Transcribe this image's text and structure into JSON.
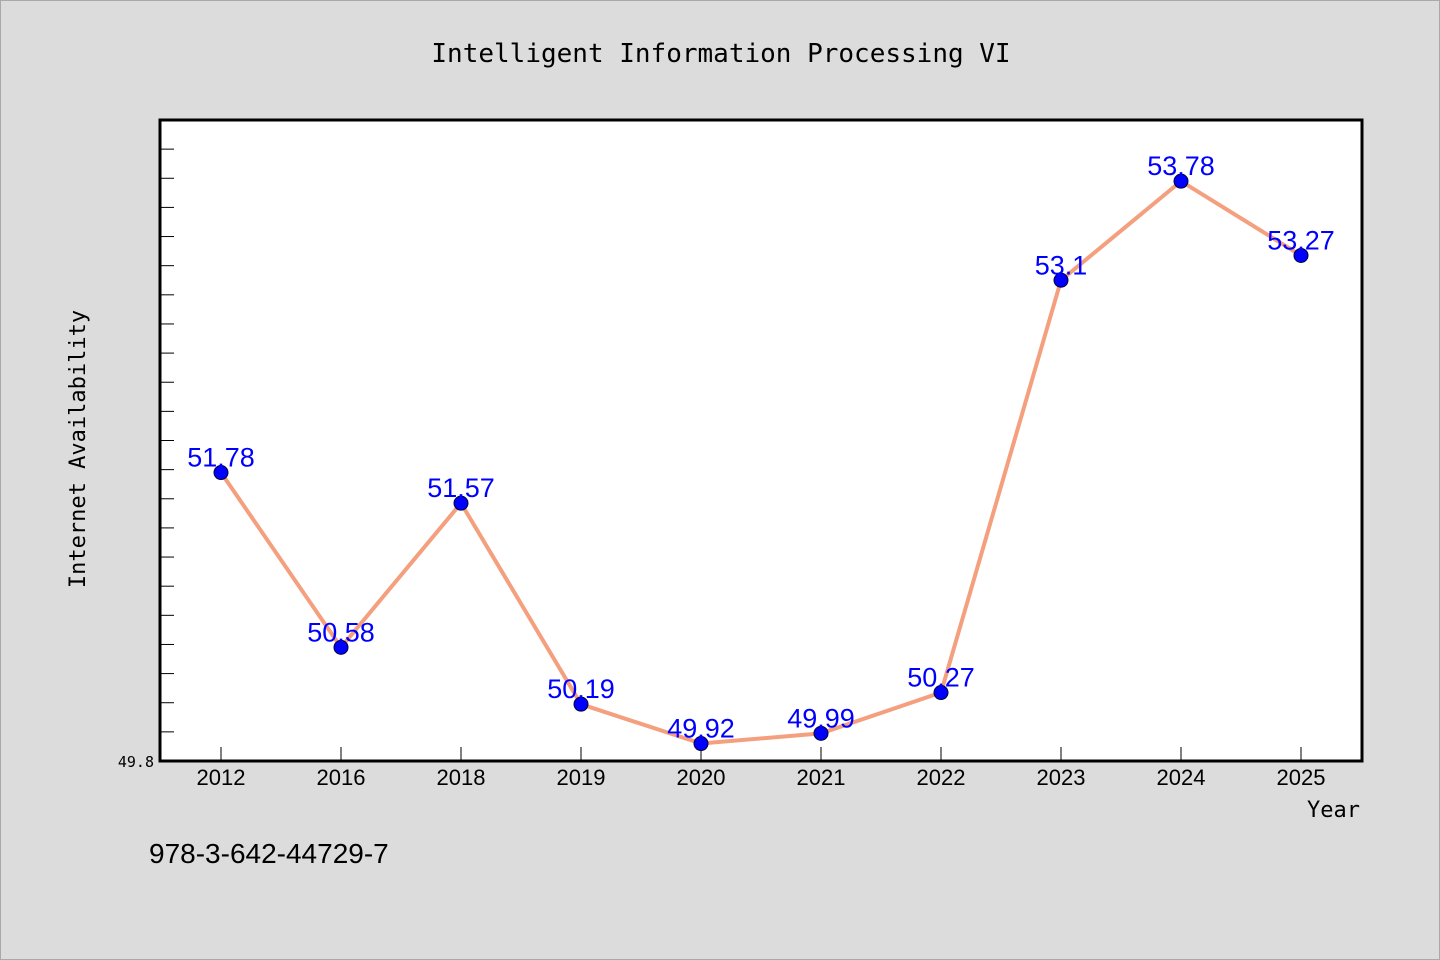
{
  "chart_data": {
    "type": "line",
    "title": "Intelligent Information Processing VI",
    "xlabel": "Year",
    "ylabel": "Internet Availability",
    "categories": [
      "2012",
      "2016",
      "2018",
      "2019",
      "2020",
      "2021",
      "2022",
      "2023",
      "2024",
      "2025"
    ],
    "series": [
      {
        "values": [
          51.78,
          50.58,
          51.57,
          50.19,
          49.92,
          49.99,
          50.27,
          53.1,
          53.78,
          53.27
        ],
        "data_labels": [
          "51.78",
          "50.58",
          "51.57",
          "50.19",
          "49.92",
          "49.99",
          "50.27",
          "53.1",
          "53.78",
          "53.27"
        ],
        "line_color": "#f4a07e",
        "marker_color": "#0000ff"
      }
    ],
    "y_tick_labels": [
      "49.8"
    ],
    "ylim": [
      49.8,
      54.2
    ],
    "grid": false,
    "legend": "none"
  },
  "footer": {
    "isbn": "978-3-642-44729-7"
  },
  "colors": {
    "background": "#dcdcdc",
    "plot_background": "#ffffff",
    "line": "#f4a07e",
    "marker": "#0000ff",
    "data_label": "#0000ff"
  }
}
